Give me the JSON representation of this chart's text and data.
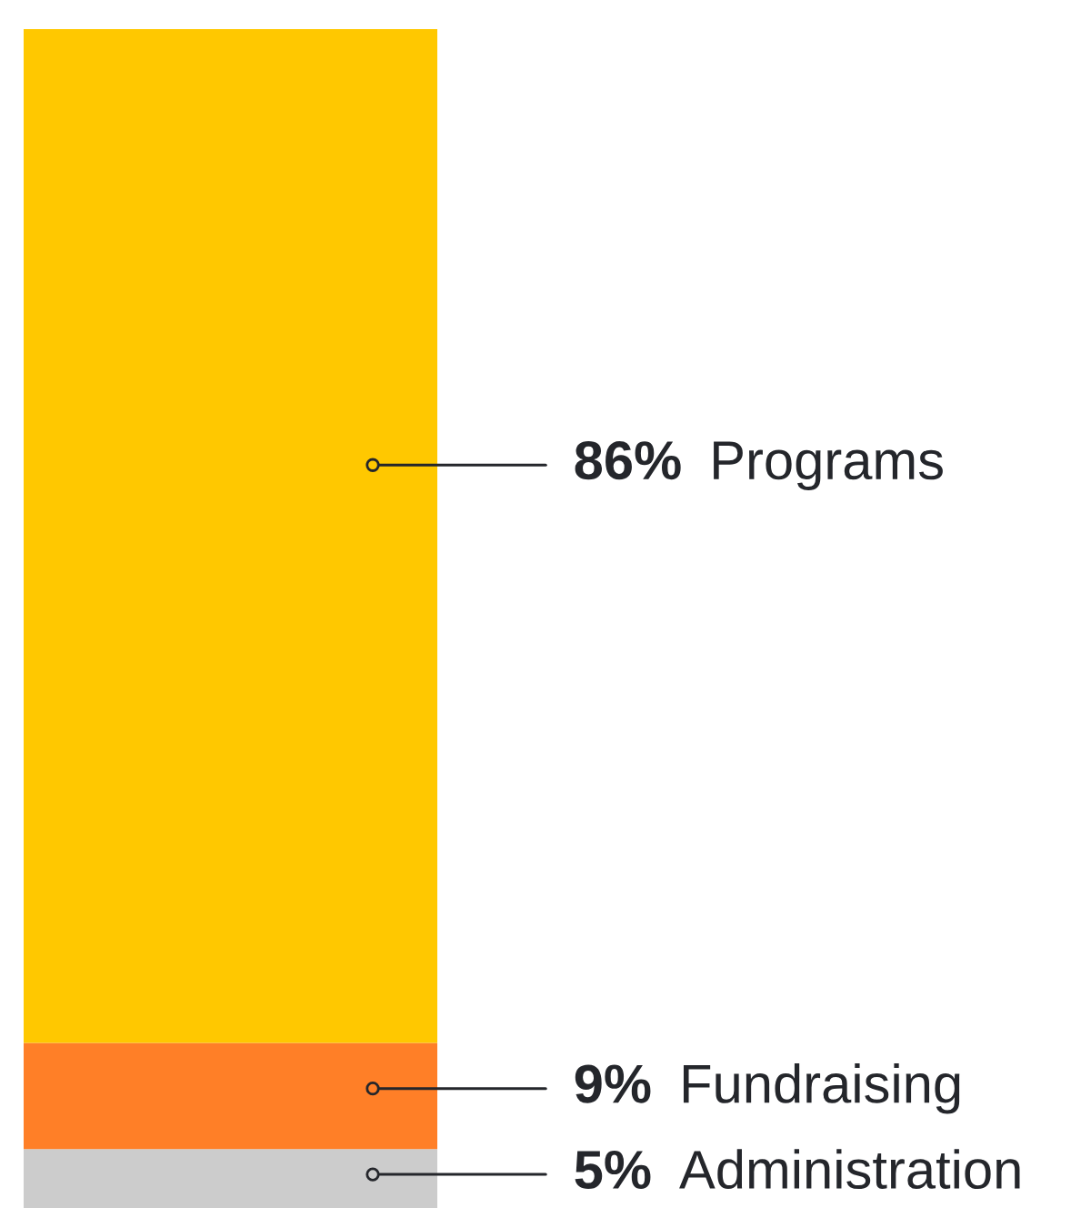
{
  "chart_data": {
    "type": "bar",
    "stacked": true,
    "categories": [
      null
    ],
    "ylim": [
      0,
      100
    ],
    "tick_labels": false,
    "series": [
      {
        "name": "Administration",
        "color": "#cccccc",
        "values": [
          5
        ],
        "value_labels": [
          "5%"
        ]
      },
      {
        "name": "Fundraising",
        "color": "#ff7f27",
        "values": [
          9
        ],
        "value_labels": [
          "9%"
        ]
      },
      {
        "name": "Programs",
        "color": "#ffc800",
        "values": [
          86
        ],
        "value_labels": [
          "86%"
        ]
      }
    ]
  }
}
